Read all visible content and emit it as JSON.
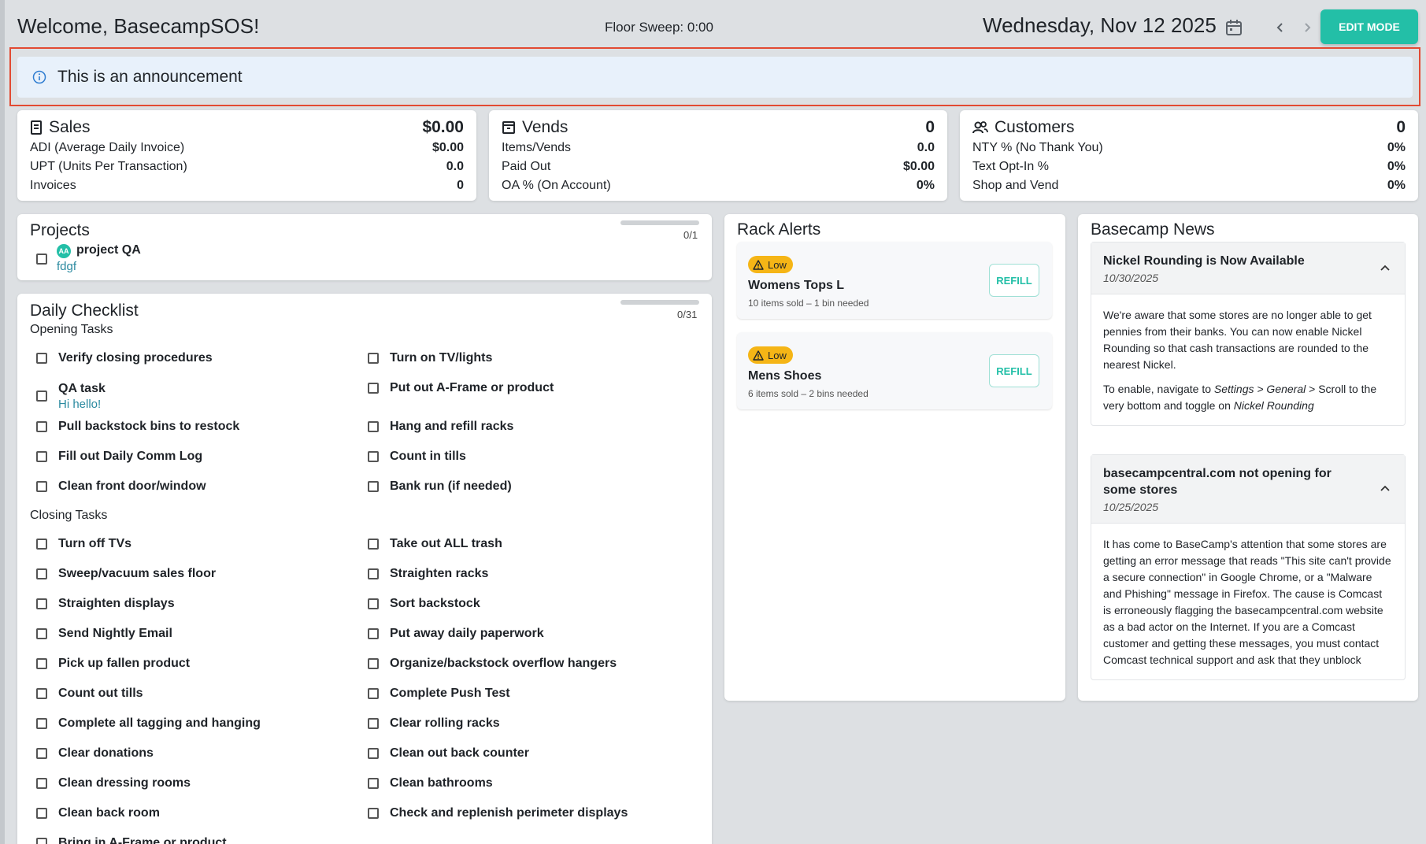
{
  "header": {
    "welcome": "Welcome, BasecampSOS!",
    "floor_sweep": "Floor Sweep: 0:00",
    "date": "Wednesday, Nov 12 2025",
    "edit_mode_label": "EDIT MODE"
  },
  "announcement": {
    "text": "This is an announcement"
  },
  "stats": {
    "sales": {
      "title": "Sales",
      "total": "$0.00",
      "rows": [
        {
          "label": "ADI (Average Daily Invoice)",
          "value": "$0.00"
        },
        {
          "label": "UPT (Units Per Transaction)",
          "value": "0.0"
        },
        {
          "label": "Invoices",
          "value": "0"
        }
      ]
    },
    "vends": {
      "title": "Vends",
      "total": "0",
      "rows": [
        {
          "label": "Items/Vends",
          "value": "0.0"
        },
        {
          "label": "Paid Out",
          "value": "$0.00"
        },
        {
          "label": "OA % (On Account)",
          "value": "0%"
        }
      ]
    },
    "customers": {
      "title": "Customers",
      "total": "0",
      "rows": [
        {
          "label": "NTY % (No Thank You)",
          "value": "0%"
        },
        {
          "label": "Text Opt-In %",
          "value": "0%"
        },
        {
          "label": "Shop and Vend",
          "value": "0%"
        }
      ]
    }
  },
  "projects": {
    "title": "Projects",
    "progress_label": "0/1",
    "progress": 0,
    "items": [
      {
        "avatar": "AA",
        "name": "project QA",
        "sub": "fdgf"
      }
    ]
  },
  "checklist": {
    "title": "Daily Checklist",
    "progress_label": "0/31",
    "progress": 0,
    "opening_title": "Opening Tasks",
    "opening_left": [
      {
        "label": "Verify closing procedures"
      },
      {
        "label": "QA task",
        "sub": "Hi hello!"
      },
      {
        "label": "Pull backstock bins to restock"
      },
      {
        "label": "Fill out Daily Comm Log"
      },
      {
        "label": "Clean front door/window"
      }
    ],
    "opening_right": [
      {
        "label": "Turn on TV/lights"
      },
      {
        "label": "Put out A-Frame or product"
      },
      {
        "label": "Hang and refill racks"
      },
      {
        "label": "Count in tills"
      },
      {
        "label": "Bank run (if needed)"
      }
    ],
    "closing_title": "Closing Tasks",
    "closing_left": [
      "Turn off TVs",
      "Sweep/vacuum sales floor",
      "Straighten displays",
      "Send Nightly Email",
      "Pick up fallen product",
      "Count out tills",
      "Complete all tagging and hanging",
      "Clear donations",
      "Clean dressing rooms",
      "Clean back room",
      "Bring in A-Frame or product"
    ],
    "closing_right": [
      "Take out ALL trash",
      "Straighten racks",
      "Sort backstock",
      "Put away daily paperwork",
      "Organize/backstock overflow hangers",
      "Complete Push Test",
      "Clear rolling racks",
      "Clean out back counter",
      "Clean bathrooms",
      "Check and replenish perimeter displays"
    ]
  },
  "rack_alerts": {
    "title": "Rack Alerts",
    "items": [
      {
        "badge": "Low",
        "name": "Womens Tops L",
        "meta": "10 items sold – 1 bin needed",
        "action": "REFILL"
      },
      {
        "badge": "Low",
        "name": "Mens Shoes",
        "meta": "6 items sold – 2 bins needed",
        "action": "REFILL"
      }
    ]
  },
  "news": {
    "title": "Basecamp News",
    "items": [
      {
        "title": "Nickel Rounding is Now Available",
        "date": "10/30/2025",
        "p1": "We're aware that some stores are no longer able to get pennies from their banks. You can now enable Nickel Rounding so that cash transactions are rounded to the nearest Nickel.",
        "p2_a": "To enable, navigate to ",
        "p2_b": "Settings > General",
        "p2_c": " > Scroll to the very bottom and toggle on ",
        "p2_d": "Nickel Rounding"
      },
      {
        "title": "basecampcentral.com not opening for some stores",
        "date": "10/25/2025",
        "p1": "It has come to BaseCamp's attention that some stores are getting an error message that reads \"This site can't provide a secure connection\" in Google Chrome, or a \"Malware and Phishing\" message in Firefox. The cause is Comcast is erroneously flagging the basecampcentral.com website as a bad actor on the Internet. If you are a Comcast customer and getting these messages, you must contact Comcast technical support and ask that they unblock"
      }
    ]
  },
  "colors": {
    "accent": "#23bfa7",
    "badge": "#f5b516",
    "announce_bg": "#e8f1fb",
    "highlight": "#e24a32"
  }
}
